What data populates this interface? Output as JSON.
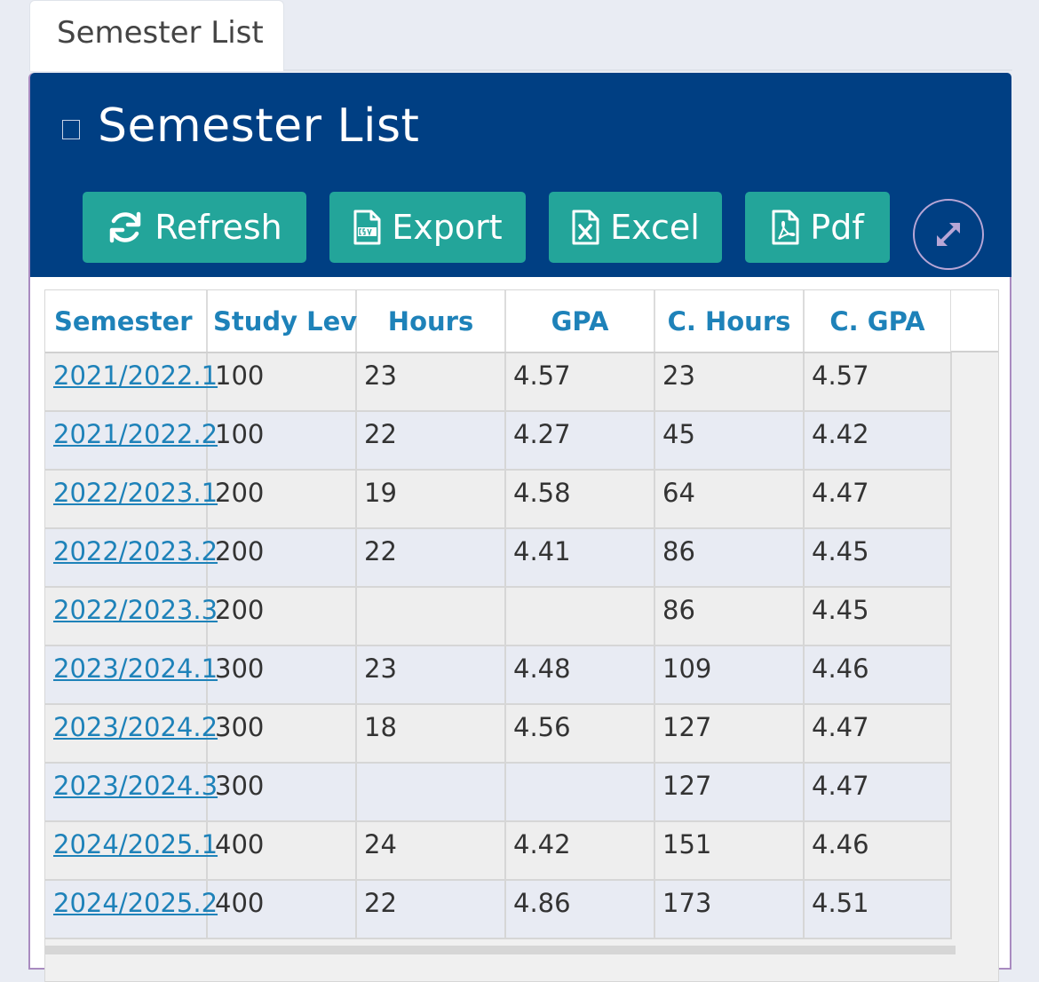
{
  "tab": {
    "label": "Semester List"
  },
  "panel": {
    "title": "Semester List",
    "buttons": {
      "refresh": "Refresh",
      "export": "Export",
      "excel": "Excel",
      "pdf": "Pdf"
    }
  },
  "table": {
    "headers": [
      "Semester",
      "Study Lev",
      "Hours",
      "GPA",
      "C. Hours",
      "C. GPA"
    ],
    "rows": [
      [
        "2021/2022.1",
        "100",
        "23",
        "4.57",
        "23",
        "4.57"
      ],
      [
        "2021/2022.2",
        "100",
        "22",
        "4.27",
        "45",
        "4.42"
      ],
      [
        "2022/2023.1",
        "200",
        "19",
        "4.58",
        "64",
        "4.47"
      ],
      [
        "2022/2023.2",
        "200",
        "22",
        "4.41",
        "86",
        "4.45"
      ],
      [
        "2022/2023.3",
        "200",
        "",
        "",
        "86",
        "4.45"
      ],
      [
        "2023/2024.1",
        "300",
        "23",
        "4.48",
        "109",
        "4.46"
      ],
      [
        "2023/2024.2",
        "300",
        "18",
        "4.56",
        "127",
        "4.47"
      ],
      [
        "2023/2024.3",
        "300",
        "",
        "",
        "127",
        "4.47"
      ],
      [
        "2024/2025.1",
        "400",
        "24",
        "4.42",
        "151",
        "4.46"
      ],
      [
        "2024/2025.2",
        "400",
        "22",
        "4.86",
        "173",
        "4.51"
      ]
    ]
  },
  "colors": {
    "header_bg": "#003f83",
    "button_bg": "#23a59a",
    "link": "#1e82b9"
  },
  "icons": {
    "refresh": "refresh-icon",
    "export": "csv-file-icon",
    "excel": "excel-file-icon",
    "pdf": "pdf-file-icon",
    "expand": "expand-icon"
  }
}
